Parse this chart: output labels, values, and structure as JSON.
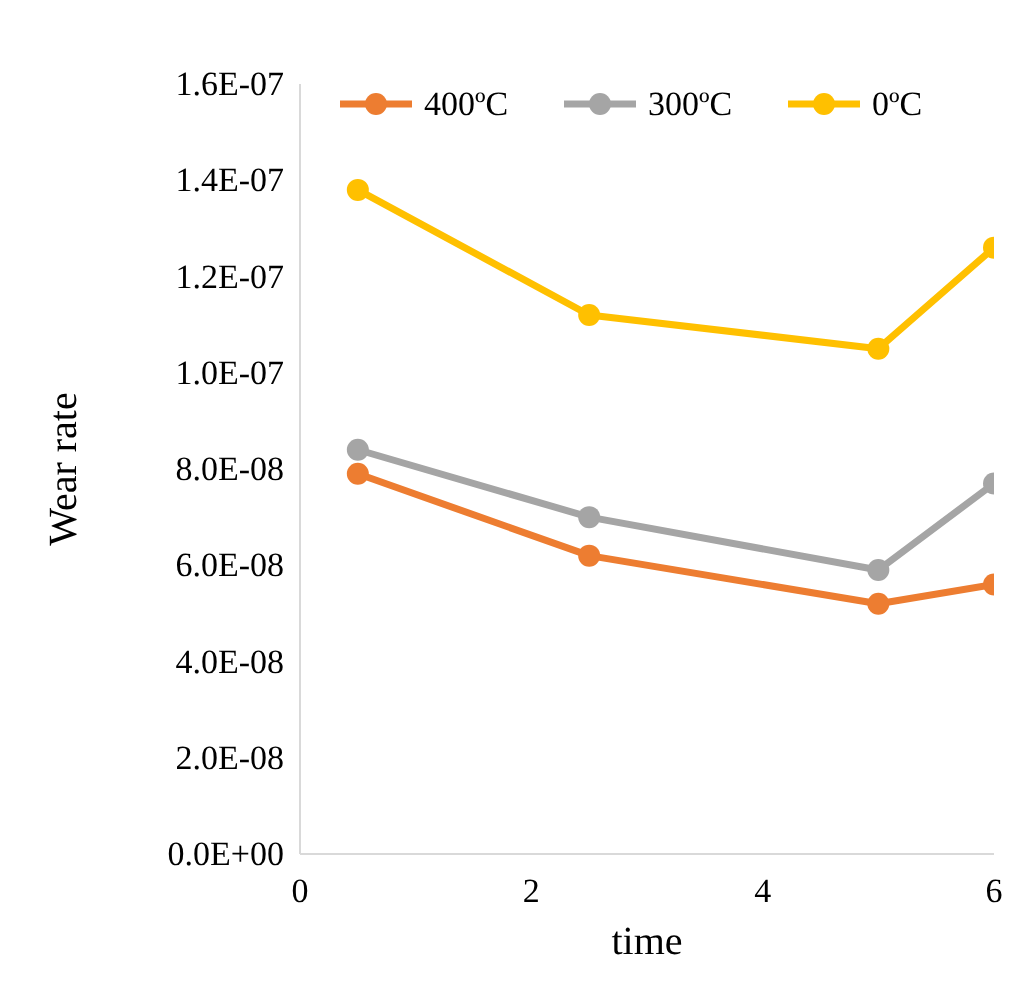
{
  "chart_data": {
    "type": "line",
    "xlabel": "time",
    "ylabel": "Wear rate",
    "xlim": [
      0,
      6
    ],
    "xticks": [
      0,
      2,
      4,
      6
    ],
    "ylim": [
      0,
      1.6e-07
    ],
    "yticks": [
      {
        "value": 0,
        "label": "0.0E+00"
      },
      {
        "value": 2e-08,
        "label": "2.0E-08"
      },
      {
        "value": 4e-08,
        "label": "4.0E-08"
      },
      {
        "value": 6e-08,
        "label": "6.0E-08"
      },
      {
        "value": 8e-08,
        "label": "8.0E-08"
      },
      {
        "value": 1e-07,
        "label": "1.0E-07"
      },
      {
        "value": 1.2e-07,
        "label": "1.2E-07"
      },
      {
        "value": 1.4e-07,
        "label": "1.4E-07"
      },
      {
        "value": 1.6e-07,
        "label": "1.6E-07"
      }
    ],
    "x": [
      0.5,
      2.5,
      5,
      6
    ],
    "series": [
      {
        "name": "400ºC",
        "color": "#ed7d31",
        "values": [
          7.9e-08,
          6.2e-08,
          5.2e-08,
          5.6e-08
        ]
      },
      {
        "name": "300ºC",
        "color": "#a5a5a5",
        "values": [
          8.4e-08,
          7e-08,
          5.9e-08,
          7.7e-08
        ]
      },
      {
        "name": "0ºC",
        "color": "#ffc000",
        "values": [
          1.38e-07,
          1.12e-07,
          1.05e-07,
          1.26e-07
        ]
      }
    ],
    "marker": "circle",
    "line_style": "solid",
    "grid": false,
    "legend": "top"
  }
}
